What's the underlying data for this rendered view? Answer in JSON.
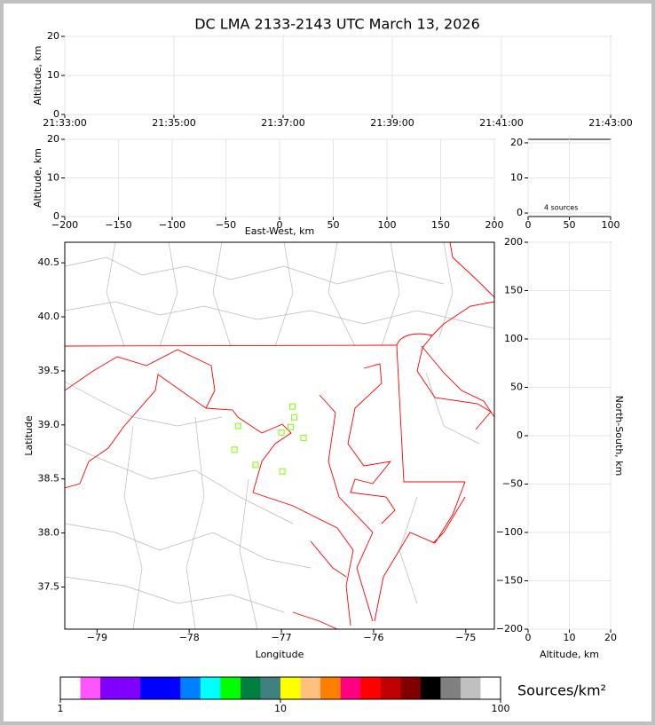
{
  "chart_data": [
    {
      "type": "scatter",
      "title": "DC LMA 2133-2143 UTC March 13, 2026",
      "ylabel": "Altitude, km",
      "xlim": [
        "21:33:00",
        "21:43:00"
      ],
      "xticks": [
        "21:33:00",
        "21:35:00",
        "21:37:00",
        "21:39:00",
        "21:41:00",
        "21:43:00"
      ],
      "ylim": [
        0,
        20
      ],
      "yticks": [
        0,
        10,
        20
      ],
      "grid": true
    },
    {
      "type": "scatter",
      "xlabel": "East-West, km",
      "ylabel": "Altitude, km",
      "xlim": [
        -200,
        200
      ],
      "xticks": [
        {
          "value": -200,
          "label": "−200"
        },
        {
          "value": -150,
          "label": "−150"
        },
        {
          "value": -100,
          "label": "−100"
        },
        {
          "value": -50,
          "label": "−50"
        },
        0,
        50,
        100,
        150,
        200
      ],
      "ylim": [
        0,
        20
      ],
      "yticks": [
        0,
        10,
        20
      ],
      "grid": true
    },
    {
      "type": "histogram",
      "annotation": "4 sources",
      "xlim": [
        0,
        100
      ],
      "xticks": [
        0,
        50,
        100
      ],
      "ylim": [
        -1,
        21
      ],
      "yticks": [
        0,
        10,
        20
      ],
      "grid": true
    },
    {
      "type": "scatter",
      "xlabel": "Longitude",
      "ylabel": "Latitude",
      "xlim": [
        -79.35,
        -74.69
      ],
      "xticks": [
        {
          "value": -79,
          "label": "−79"
        },
        {
          "value": -78,
          "label": "−78"
        },
        {
          "value": -77,
          "label": "−77"
        },
        {
          "value": -76,
          "label": "−76"
        },
        {
          "value": -75,
          "label": "−75"
        }
      ],
      "ylim": [
        37.11,
        40.69
      ],
      "yticks": [
        37.5,
        {
          "value": 38,
          "label": "38.0"
        },
        38.5,
        {
          "value": 39,
          "label": "39.0"
        },
        39.5,
        {
          "value": 40,
          "label": "40.0"
        },
        40.5
      ],
      "grid": false,
      "color": "#7fff00",
      "marker": "open-square",
      "x": [
        -77.47,
        -76.88,
        -76.86,
        -76.9,
        -77.0,
        -76.76,
        -77.51,
        -77.28,
        -76.99
      ],
      "y": [
        38.99,
        39.17,
        39.07,
        38.98,
        38.93,
        38.88,
        38.77,
        38.63,
        38.57
      ]
    },
    {
      "type": "scatter",
      "xlabel": "Altitude, km",
      "ylabel": "North-South, km",
      "ylabel_side": "right",
      "xlim": [
        0,
        20
      ],
      "xticks": [
        0,
        10,
        20
      ],
      "ylim": [
        -200,
        200
      ],
      "yticks": [
        {
          "value": -200,
          "label": "−200"
        },
        {
          "value": -150,
          "label": "−150"
        },
        {
          "value": -100,
          "label": "−100"
        },
        {
          "value": -50,
          "label": "−50"
        },
        0,
        50,
        100,
        150,
        200
      ],
      "grid": true
    },
    {
      "type": "colorbar",
      "label": "Sources/km²",
      "log": true,
      "xlim": [
        1,
        100
      ],
      "xticks": [
        1,
        10,
        100
      ],
      "colors": [
        "#ffffff",
        "#ff55ff",
        "#8000ff",
        "#8000ff",
        "#0000ff",
        "#0000ff",
        "#0080ff",
        "#00ffff",
        "#00ff00",
        "#008040",
        "#408080",
        "#ffff00",
        "#ffc080",
        "#ff8000",
        "#ff0080",
        "#ff0000",
        "#c00000",
        "#800000",
        "#000000",
        "#808080",
        "#c0c0c0",
        "#ffffff"
      ]
    }
  ]
}
